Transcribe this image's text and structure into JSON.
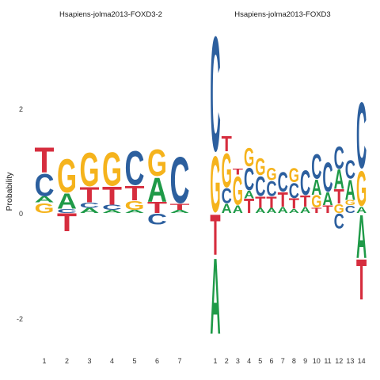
{
  "chart_data": [
    {
      "type": "sequence-logo",
      "title": "Hsapiens-jolma2013-FOXD3-2",
      "ylabel": "Probability",
      "ylim": [
        -2.35,
        3.45
      ],
      "yticks": [
        "-2",
        "0",
        "2"
      ],
      "ytick_values": [
        -2,
        0,
        2
      ],
      "xticks": [
        "1",
        "2",
        "3",
        "4",
        "5",
        "6",
        "7"
      ],
      "colors": {
        "A": "#1f9a48",
        "C": "#2c5f9e",
        "G": "#f5b31c",
        "T": "#d62d3e"
      },
      "positions": [
        {
          "pos": "1",
          "letters": [
            [
              "G",
              0.2
            ],
            [
              "A",
              0.12
            ],
            [
              "C",
              0.45
            ],
            [
              "T",
              0.5
            ]
          ]
        },
        {
          "pos": "2",
          "letters": [
            [
              "T",
              -0.35
            ],
            [
              "C",
              0.08
            ],
            [
              "A",
              0.3
            ],
            [
              "G",
              0.68
            ]
          ]
        },
        {
          "pos": "3",
          "letters": [
            [
              "A",
              0.1
            ],
            [
              "C",
              0.1
            ],
            [
              "T",
              0.3
            ],
            [
              "G",
              0.68
            ]
          ]
        },
        {
          "pos": "4",
          "letters": [
            [
              "A",
              0.06
            ],
            [
              "C",
              0.1
            ],
            [
              "T",
              0.35
            ],
            [
              "G",
              0.68
            ]
          ]
        },
        {
          "pos": "5",
          "letters": [
            [
              "A",
              0.06
            ],
            [
              "G",
              0.18
            ],
            [
              "T",
              0.28
            ],
            [
              "C",
              0.7
            ]
          ]
        },
        {
          "pos": "6",
          "letters": [
            [
              "C",
              -0.22
            ],
            [
              "T",
              0.22
            ],
            [
              "A",
              0.48
            ],
            [
              "G",
              0.55
            ]
          ]
        },
        {
          "pos": "7",
          "letters": [
            [
              "A",
              0.06
            ],
            [
              "T",
              0.12
            ],
            [
              "C",
              0.95
            ]
          ]
        }
      ]
    },
    {
      "type": "sequence-logo",
      "title": "Hsapiens-jolma2013-FOXD3",
      "ylim": [
        -2.35,
        3.45
      ],
      "xticks": [
        "1",
        "2",
        "3",
        "4",
        "5",
        "6",
        "7",
        "8",
        "9",
        "10",
        "11",
        "12",
        "13",
        "14"
      ],
      "colors": {
        "A": "#1f9a48",
        "C": "#2c5f9e",
        "G": "#f5b31c",
        "T": "#d62d3e"
      },
      "positions": [
        {
          "pos": "1",
          "letters": [
            [
              "T",
              -0.8
            ],
            [
              "A",
              -1.5
            ],
            [
              "G",
              1.15
            ],
            [
              "C",
              2.35
            ]
          ]
        },
        {
          "pos": "2",
          "letters": [
            [
              "A",
              0.18
            ],
            [
              "C",
              0.3
            ],
            [
              "G",
              0.7
            ],
            [
              "T",
              0.3
            ]
          ]
        },
        {
          "pos": "3",
          "letters": [
            [
              "A",
              0.15
            ],
            [
              "G",
              0.58
            ],
            [
              "T",
              0.12
            ]
          ]
        },
        {
          "pos": "4",
          "letters": [
            [
              "T",
              0.28
            ],
            [
              "A",
              0.15
            ],
            [
              "C",
              0.45
            ],
            [
              "G",
              0.38
            ]
          ]
        },
        {
          "pos": "5",
          "letters": [
            [
              "A",
              0.1
            ],
            [
              "T",
              0.22
            ],
            [
              "C",
              0.4
            ],
            [
              "G",
              0.35
            ]
          ]
        },
        {
          "pos": "6",
          "letters": [
            [
              "A",
              0.1
            ],
            [
              "T",
              0.22
            ],
            [
              "C",
              0.3
            ],
            [
              "G",
              0.25
            ]
          ]
        },
        {
          "pos": "7",
          "letters": [
            [
              "A",
              0.12
            ],
            [
              "T",
              0.28
            ],
            [
              "C",
              0.4
            ]
          ]
        },
        {
          "pos": "8",
          "letters": [
            [
              "A",
              0.08
            ],
            [
              "T",
              0.2
            ],
            [
              "C",
              0.3
            ],
            [
              "G",
              0.28
            ]
          ]
        },
        {
          "pos": "9",
          "letters": [
            [
              "A",
              0.12
            ],
            [
              "T",
              0.22
            ],
            [
              "C",
              0.5
            ]
          ]
        },
        {
          "pos": "10",
          "letters": [
            [
              "T",
              0.1
            ],
            [
              "G",
              0.25
            ],
            [
              "A",
              0.3
            ],
            [
              "C",
              0.5
            ]
          ]
        },
        {
          "pos": "11",
          "letters": [
            [
              "T",
              0.15
            ],
            [
              "A",
              0.25
            ],
            [
              "C",
              0.6
            ]
          ]
        },
        {
          "pos": "12",
          "letters": [
            [
              "C",
              -0.3
            ],
            [
              "G",
              0.18
            ],
            [
              "T",
              0.28
            ],
            [
              "A",
              0.38
            ],
            [
              "C",
              0.45
            ]
          ]
        },
        {
          "pos": "13",
          "letters": [
            [
              "C",
              0.15
            ],
            [
              "G",
              0.1
            ],
            [
              "A",
              0.4
            ],
            [
              "C",
              0.38
            ]
          ]
        },
        {
          "pos": "14",
          "letters": [
            [
              "A",
              -0.85
            ],
            [
              "T",
              -0.8
            ],
            [
              "A",
              0.12
            ],
            [
              "G",
              0.72
            ],
            [
              "C",
              1.35
            ]
          ]
        }
      ]
    }
  ]
}
